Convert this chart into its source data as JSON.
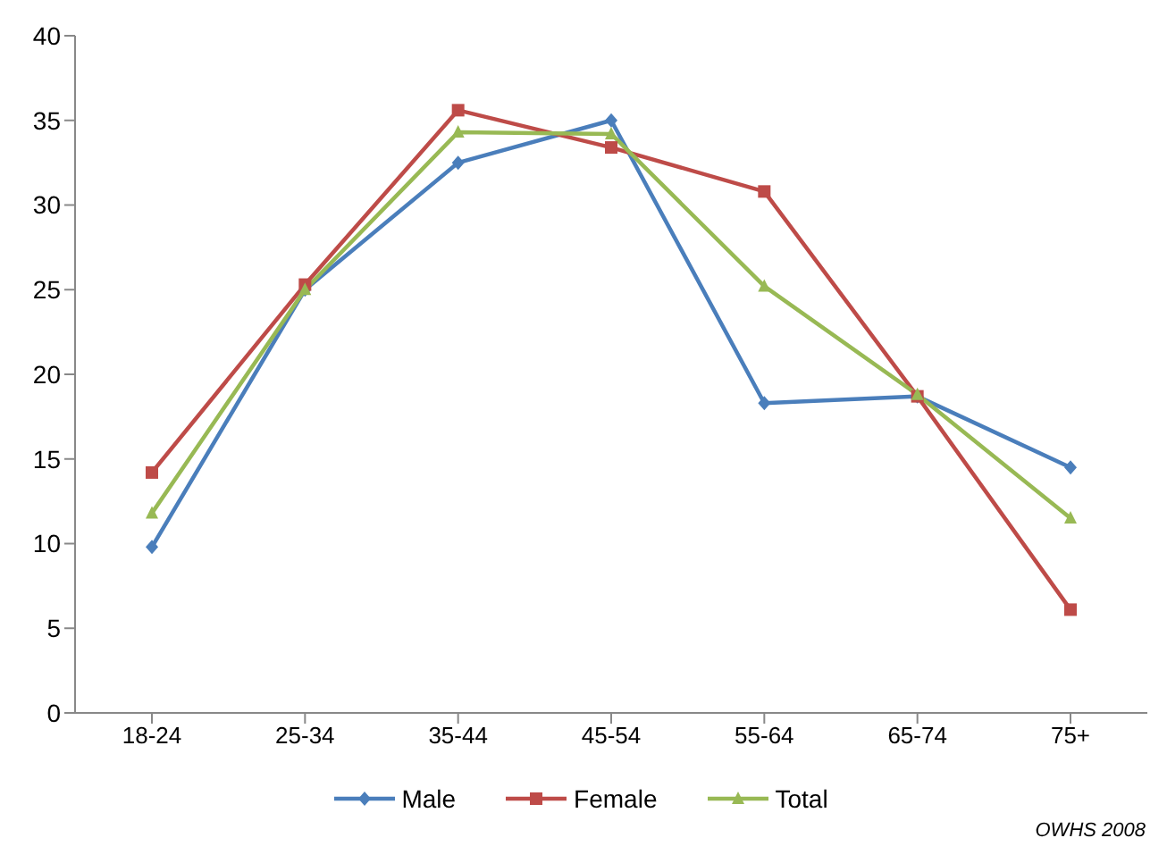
{
  "chart_data": {
    "type": "line",
    "categories": [
      "18-24",
      "25-34",
      "35-44",
      "45-54",
      "55-64",
      "65-74",
      "75+"
    ],
    "series": [
      {
        "name": "Male",
        "color": "#4a7ebb",
        "marker": "diamond",
        "values": [
          9.8,
          25.0,
          32.5,
          35.0,
          18.3,
          18.7,
          14.5
        ]
      },
      {
        "name": "Female",
        "color": "#be4b48",
        "marker": "square",
        "values": [
          14.2,
          25.3,
          35.6,
          33.4,
          30.8,
          18.7,
          6.1
        ]
      },
      {
        "name": "Total",
        "color": "#98b954",
        "marker": "triangle",
        "values": [
          11.8,
          25.0,
          34.3,
          34.2,
          25.2,
          18.8,
          11.5
        ]
      }
    ],
    "ylim": [
      0,
      40
    ],
    "yticks": [
      0,
      5,
      10,
      15,
      20,
      25,
      30,
      35,
      40
    ],
    "grid": false,
    "legend": "bottom",
    "annotations": [
      "OWHS 2008"
    ]
  }
}
